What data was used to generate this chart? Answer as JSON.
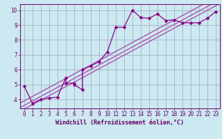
{
  "title": "",
  "xlabel": "Windchill (Refroidissement éolien,°C)",
  "bg_color": "#cce8f0",
  "line_color": "#880088",
  "grid_color": "#99aabb",
  "axis_color": "#660066",
  "text_color": "#660066",
  "x_data": [
    0,
    1,
    2,
    3,
    4,
    5,
    5,
    6,
    6,
    7,
    7,
    8,
    9,
    10,
    11,
    12,
    13,
    14,
    15,
    16,
    17,
    18,
    19,
    20,
    21,
    22,
    23
  ],
  "y_data": [
    4.9,
    3.75,
    4.0,
    4.1,
    4.15,
    5.45,
    5.1,
    5.1,
    5.0,
    4.65,
    6.0,
    6.25,
    6.55,
    7.2,
    8.85,
    8.85,
    10.0,
    9.5,
    9.45,
    9.75,
    9.3,
    9.35,
    9.15,
    9.15,
    9.15,
    9.45,
    9.9
  ],
  "xlim": [
    -0.5,
    23.5
  ],
  "ylim": [
    3.4,
    10.4
  ],
  "yticks": [
    4,
    5,
    6,
    7,
    8,
    9,
    10
  ],
  "xticks": [
    0,
    1,
    2,
    3,
    4,
    5,
    6,
    7,
    8,
    9,
    10,
    11,
    12,
    13,
    14,
    15,
    16,
    17,
    18,
    19,
    20,
    21,
    22,
    23
  ],
  "reg_offsets": [
    0.0,
    -0.3,
    -0.55
  ],
  "reg_color": "#aa44aa",
  "line_width": 0.9,
  "marker_size": 2.5,
  "tick_fontsize": 5.5,
  "xlabel_fontsize": 6.0
}
